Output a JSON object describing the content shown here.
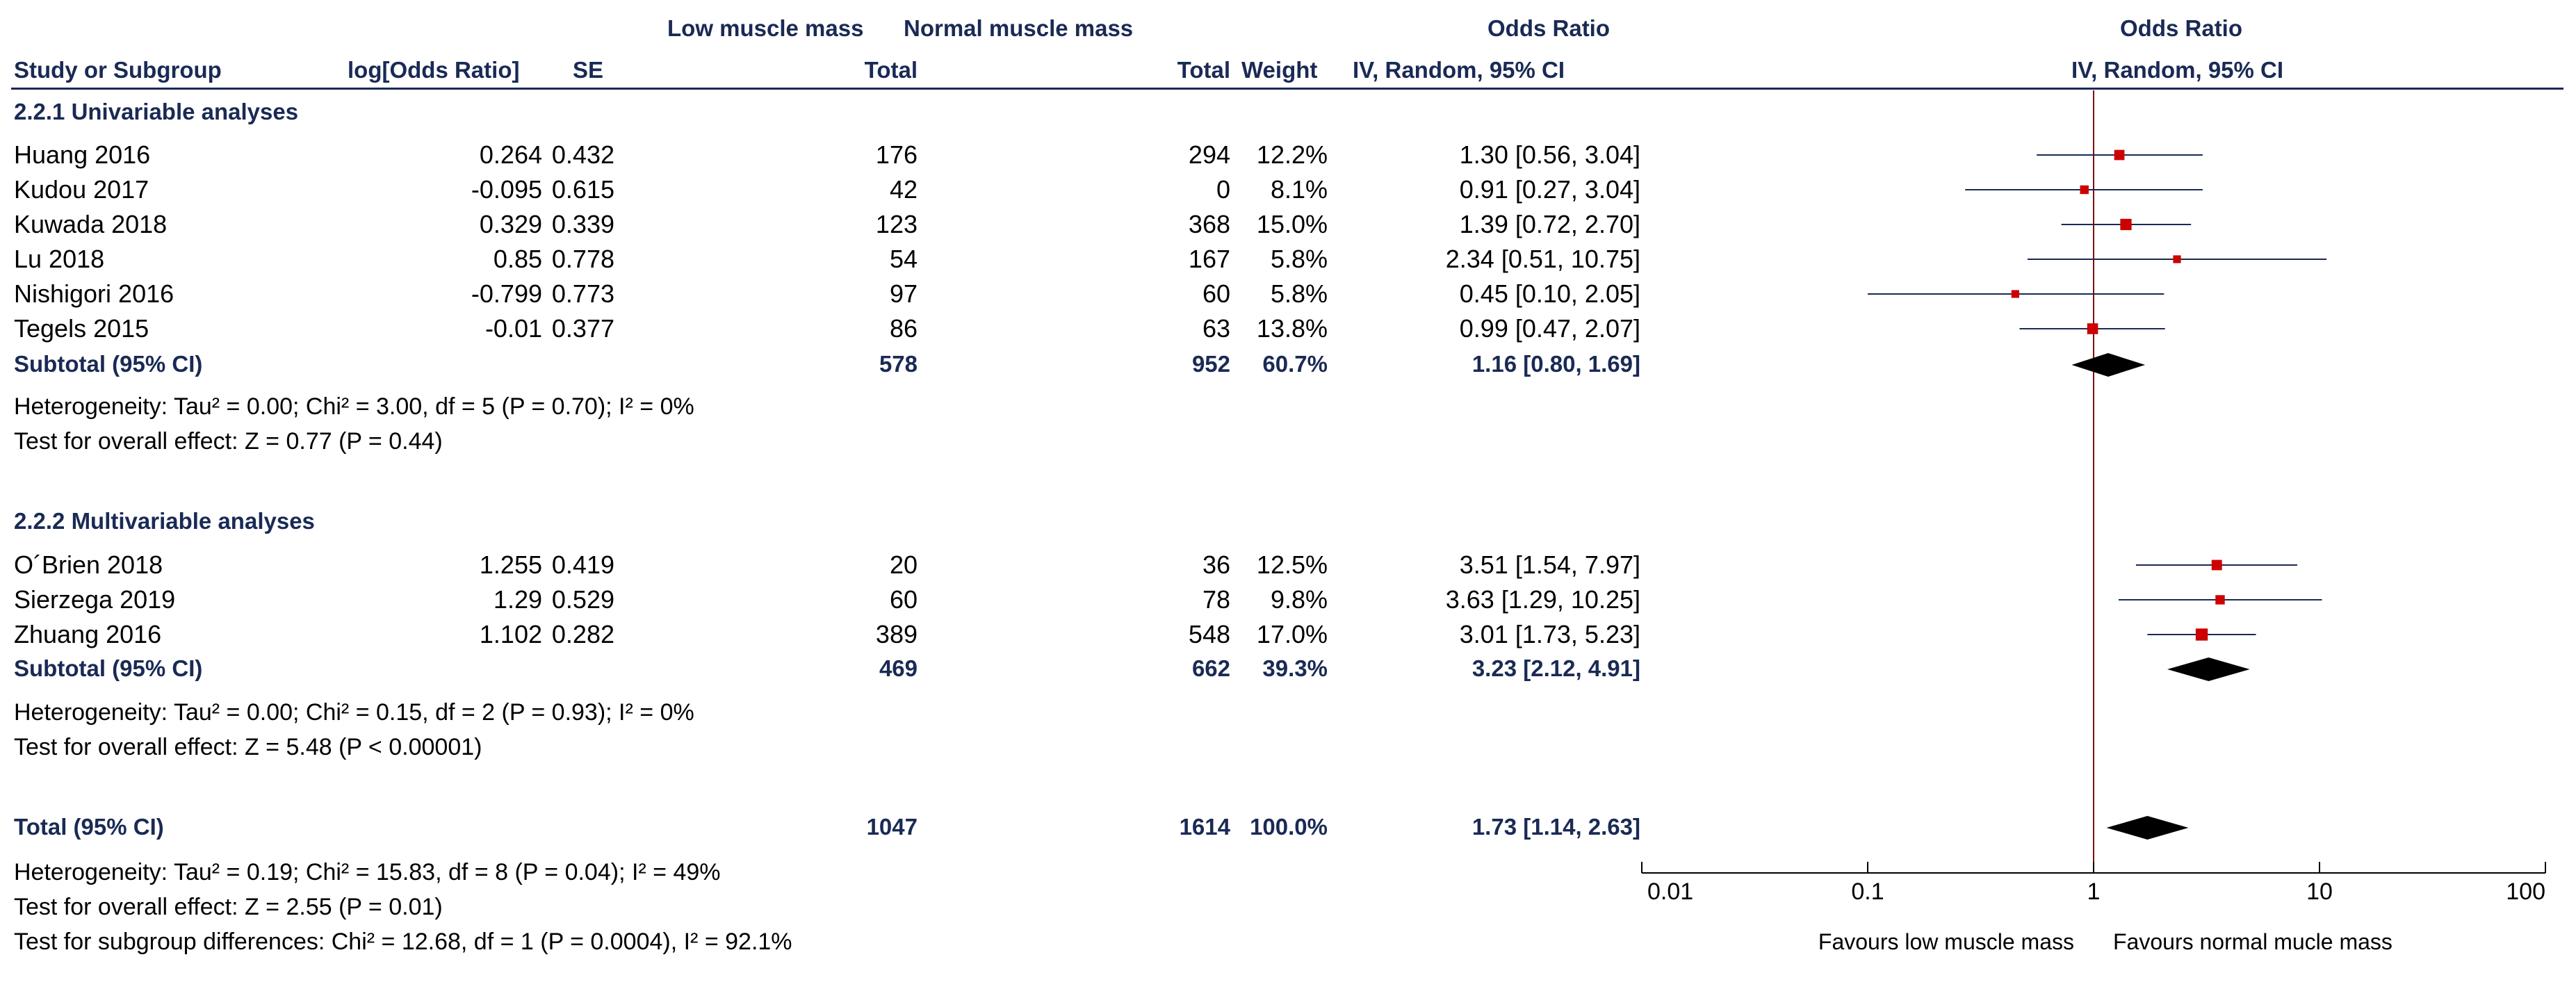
{
  "header": {
    "group1": "Low muscle mass",
    "group2": "Normal muscle mass",
    "or_top": "Odds Ratio",
    "plot_top": "Odds Ratio",
    "study": "Study or Subgroup",
    "logor": "log[Odds Ratio]",
    "se": "SE",
    "total1": "Total",
    "total2": "Total",
    "weight": "Weight",
    "or_method": "IV, Random, 95% CI",
    "plot_method": "IV, Random, 95% CI"
  },
  "subgroups": [
    {
      "title": "2.2.1 Univariable analyses",
      "studies": [
        {
          "name": "Huang 2016",
          "logor": "0.264",
          "se": "0.432",
          "n1": "176",
          "n2": "294",
          "weight": "12.2%",
          "ci": "1.30 [0.56, 3.04]"
        },
        {
          "name": "Kudou 2017",
          "logor": "-0.095",
          "se": "0.615",
          "n1": "42",
          "n2": "0",
          "weight": "8.1%",
          "ci": "0.91 [0.27, 3.04]"
        },
        {
          "name": "Kuwada 2018",
          "logor": "0.329",
          "se": "0.339",
          "n1": "123",
          "n2": "368",
          "weight": "15.0%",
          "ci": "1.39 [0.72, 2.70]"
        },
        {
          "name": "Lu 2018",
          "logor": "0.85",
          "se": "0.778",
          "n1": "54",
          "n2": "167",
          "weight": "5.8%",
          "ci": "2.34 [0.51, 10.75]"
        },
        {
          "name": "Nishigori 2016",
          "logor": "-0.799",
          "se": "0.773",
          "n1": "97",
          "n2": "60",
          "weight": "5.8%",
          "ci": "0.45 [0.10, 2.05]"
        },
        {
          "name": "Tegels 2015",
          "logor": "-0.01",
          "se": "0.377",
          "n1": "86",
          "n2": "63",
          "weight": "13.8%",
          "ci": "0.99 [0.47, 2.07]"
        }
      ],
      "subtotal": {
        "label": "Subtotal (95% CI)",
        "n1": "578",
        "n2": "952",
        "weight": "60.7%",
        "ci": "1.16 [0.80, 1.69]"
      },
      "heterogeneity": "Heterogeneity: Tau² = 0.00; Chi² = 3.00, df = 5 (P = 0.70); I² = 0%",
      "overall": "Test for overall effect: Z = 0.77 (P = 0.44)"
    },
    {
      "title": "2.2.2 Multivariable analyses",
      "studies": [
        {
          "name": "O´Brien 2018",
          "logor": "1.255",
          "se": "0.419",
          "n1": "20",
          "n2": "36",
          "weight": "12.5%",
          "ci": "3.51 [1.54, 7.97]"
        },
        {
          "name": "Sierzega 2019",
          "logor": "1.29",
          "se": "0.529",
          "n1": "60",
          "n2": "78",
          "weight": "9.8%",
          "ci": "3.63 [1.29, 10.25]"
        },
        {
          "name": "Zhuang 2016",
          "logor": "1.102",
          "se": "0.282",
          "n1": "389",
          "n2": "548",
          "weight": "17.0%",
          "ci": "3.01 [1.73, 5.23]"
        }
      ],
      "subtotal": {
        "label": "Subtotal (95% CI)",
        "n1": "469",
        "n2": "662",
        "weight": "39.3%",
        "ci": "3.23 [2.12, 4.91]"
      },
      "heterogeneity": "Heterogeneity: Tau² = 0.00; Chi² = 0.15, df = 2 (P = 0.93); I² = 0%",
      "overall": "Test for overall effect: Z = 5.48 (P < 0.00001)"
    }
  ],
  "total": {
    "label": "Total (95% CI)",
    "n1": "1047",
    "n2": "1614",
    "weight": "100.0%",
    "ci": "1.73 [1.14, 2.63]"
  },
  "footer": {
    "heterogeneity": "Heterogeneity: Tau² = 0.19; Chi² = 15.83, df = 8 (P = 0.04); I² = 49%",
    "overall": "Test for overall effect: Z = 2.55 (P = 0.01)",
    "subgroup": "Test for subgroup differences: Chi² = 12.68, df = 1 (P = 0.0004), I² = 92.1%"
  },
  "colors": {
    "header_text": "#1a2a55",
    "study_marker": "#cc0000",
    "diamond": "#000000",
    "line": "#1a2a55",
    "null_line": "#7a1010"
  },
  "chart_data": {
    "type": "forest",
    "scale": "log",
    "xlim": [
      0.01,
      100
    ],
    "ticks": [
      "0.01",
      "0.1",
      "1",
      "10",
      "100"
    ],
    "tick_values": [
      0.01,
      0.1,
      1,
      10,
      100
    ],
    "null_value": 1,
    "xlabel_left": "Favours low muscle mass",
    "xlabel_right": "Favours normal mucle mass",
    "studies": [
      {
        "name": "Huang 2016",
        "or": 1.3,
        "lo": 0.56,
        "hi": 3.04,
        "weight": 12.2
      },
      {
        "name": "Kudou 2017",
        "or": 0.91,
        "lo": 0.27,
        "hi": 3.04,
        "weight": 8.1
      },
      {
        "name": "Kuwada 2018",
        "or": 1.39,
        "lo": 0.72,
        "hi": 2.7,
        "weight": 15.0
      },
      {
        "name": "Lu 2018",
        "or": 2.34,
        "lo": 0.51,
        "hi": 10.75,
        "weight": 5.8
      },
      {
        "name": "Nishigori 2016",
        "or": 0.45,
        "lo": 0.1,
        "hi": 2.05,
        "weight": 5.8
      },
      {
        "name": "Tegels 2015",
        "or": 0.99,
        "lo": 0.47,
        "hi": 2.07,
        "weight": 13.8
      },
      {
        "name": "O´Brien 2018",
        "or": 3.51,
        "lo": 1.54,
        "hi": 7.97,
        "weight": 12.5
      },
      {
        "name": "Sierzega 2019",
        "or": 3.63,
        "lo": 1.29,
        "hi": 10.25,
        "weight": 9.8
      },
      {
        "name": "Zhuang 2016",
        "or": 3.01,
        "lo": 1.73,
        "hi": 5.23,
        "weight": 17.0
      }
    ],
    "pooled": [
      {
        "name": "Subtotal 2.2.1",
        "or": 1.16,
        "lo": 0.8,
        "hi": 1.69
      },
      {
        "name": "Subtotal 2.2.2",
        "or": 3.23,
        "lo": 2.12,
        "hi": 4.91
      },
      {
        "name": "Total",
        "or": 1.73,
        "lo": 1.14,
        "hi": 2.63
      }
    ]
  }
}
